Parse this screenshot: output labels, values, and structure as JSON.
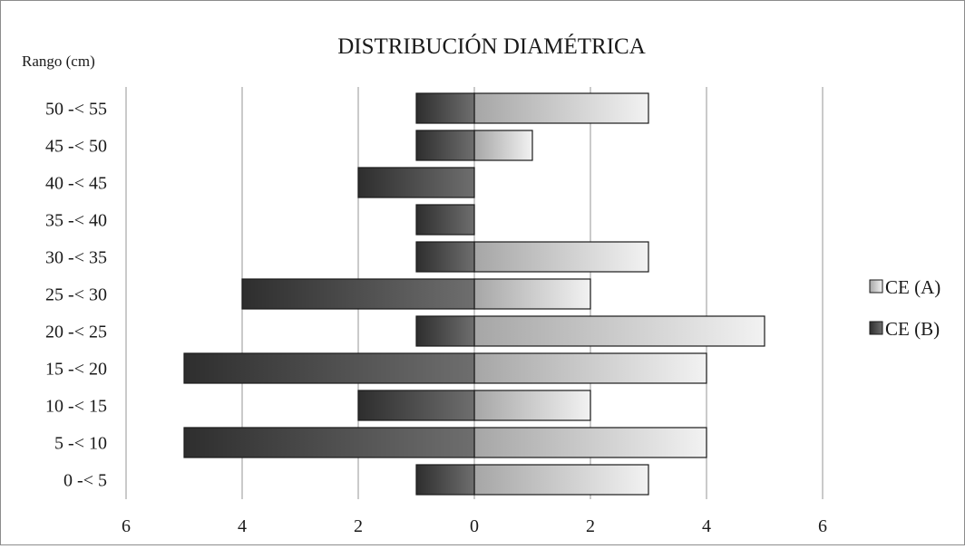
{
  "chart_data": {
    "type": "bar",
    "orientation": "horizontal",
    "title": "DISTRIBUCIÓN DIAMÉTRICA",
    "ylabel": "Rango (cm)",
    "xlabel": "",
    "categories": [
      "0 -< 5",
      "5 -< 10",
      "10 -< 15",
      "15 -< 20",
      "20 -< 25",
      "25 -< 30",
      "30 -< 35",
      "35 -< 40",
      "40 -< 45",
      "45 -< 50",
      "50 -< 55"
    ],
    "series": [
      {
        "name": "CE (A)",
        "direction": "right",
        "color": "#d9d9d9",
        "values": [
          3,
          4,
          2,
          4,
          5,
          2,
          3,
          0,
          0,
          1,
          3
        ]
      },
      {
        "name": "CE (B)",
        "direction": "left",
        "color": "#404040",
        "values": [
          1,
          5,
          2,
          5,
          1,
          4,
          1,
          1,
          2,
          1,
          1
        ]
      }
    ],
    "xlim": [
      -6,
      6
    ],
    "xticks": [
      -6,
      -4,
      -2,
      0,
      2,
      4,
      6
    ],
    "xtick_labels": [
      "6",
      "4",
      "2",
      "0",
      "2",
      "4",
      "6"
    ],
    "grid": true,
    "legend_position": "right"
  }
}
